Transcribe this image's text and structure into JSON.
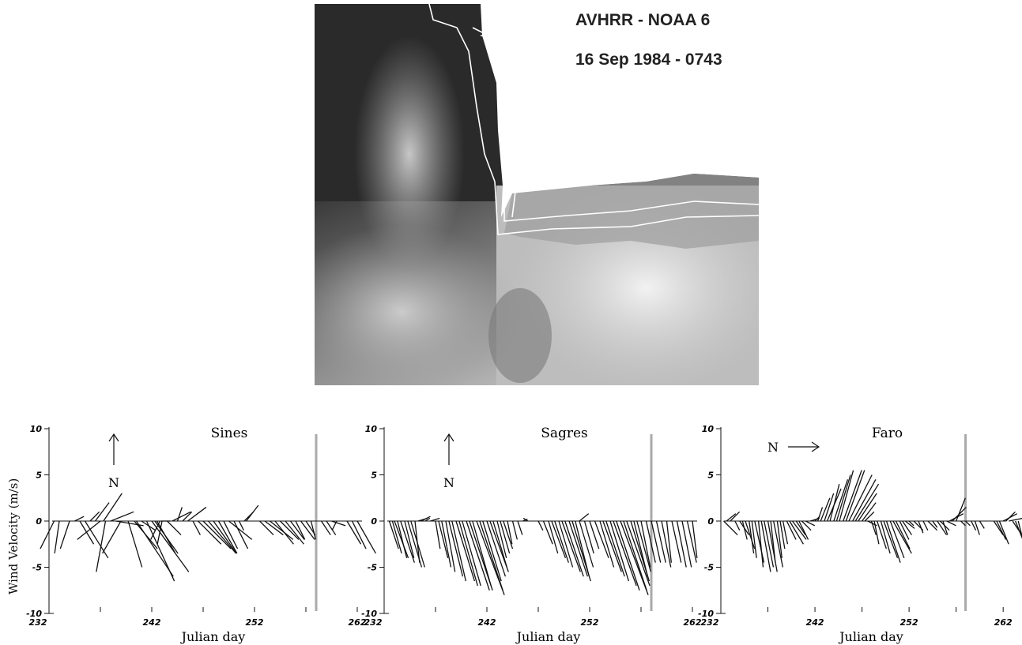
{
  "image": {
    "title": "AVHRR - NOAA 6",
    "date": "16 Sep 1984 - 0743"
  },
  "chart_data": [
    {
      "type": "stickplot",
      "title": "Sines",
      "xlabel": "Julian day",
      "ylabel": "Wind Velocity (m/s)",
      "xlim": [
        232,
        264
      ],
      "ylim": [
        -10,
        10
      ],
      "yticks": [
        10,
        5,
        0,
        -5,
        -10
      ],
      "xticks": [
        232,
        242,
        252,
        262
      ],
      "north_arrow": {
        "label": "N",
        "direction": "up"
      },
      "marker_day": 258,
      "vectors": [
        [
          232.5,
          -1.5,
          -3
        ],
        [
          233,
          -0.5,
          -3.5
        ],
        [
          234,
          -1,
          -3
        ],
        [
          234.5,
          1,
          0.5
        ],
        [
          235,
          1.5,
          -2.5
        ],
        [
          235.5,
          2.5,
          -4
        ],
        [
          236,
          1,
          1
        ],
        [
          236.5,
          1.5,
          2
        ],
        [
          237,
          -2.5,
          -2
        ],
        [
          237.3,
          2,
          3
        ],
        [
          237.5,
          -1,
          -5.5
        ],
        [
          238,
          2.5,
          1
        ],
        [
          238.5,
          3,
          -0.5
        ],
        [
          239,
          -2,
          -3.5
        ],
        [
          239.7,
          1.5,
          -5
        ],
        [
          240.3,
          2.5,
          -3
        ],
        [
          240.5,
          4,
          -6
        ],
        [
          241,
          1.5,
          -1
        ],
        [
          241.5,
          3,
          -6.5
        ],
        [
          242,
          4,
          -5.5
        ],
        [
          242.3,
          2.5,
          -3.5
        ],
        [
          242.5,
          2,
          -3.5
        ],
        [
          242.8,
          -1,
          -2
        ],
        [
          243,
          -0.5,
          -2.5
        ],
        [
          243.5,
          1.5,
          -1.5
        ],
        [
          243.8,
          -1,
          0
        ],
        [
          244,
          2,
          1
        ],
        [
          244.5,
          0.5,
          1.5
        ],
        [
          245,
          1,
          1
        ],
        [
          245.5,
          2,
          1.5
        ],
        [
          246,
          0.8,
          -1.5
        ],
        [
          246.5,
          2.5,
          -2.5
        ],
        [
          247,
          3,
          -3
        ],
        [
          247.5,
          3,
          -3.5
        ],
        [
          248,
          2.5,
          -3.5
        ],
        [
          248.5,
          2,
          -3.5
        ],
        [
          249,
          1.5,
          -3
        ],
        [
          249.5,
          2.5,
          -2
        ],
        [
          250,
          1.5,
          -3
        ],
        [
          250.5,
          0.5,
          -1
        ],
        [
          251,
          1,
          1
        ],
        [
          251.2,
          1.3,
          1.7
        ],
        [
          252.5,
          1.5,
          -1.5
        ],
        [
          253,
          2,
          -1.5
        ],
        [
          253.5,
          2.5,
          -2
        ],
        [
          254,
          2,
          -2.5
        ],
        [
          254.5,
          2,
          -2
        ],
        [
          255,
          2,
          -2.5
        ],
        [
          255.5,
          1.5,
          -2
        ],
        [
          256,
          1,
          -2
        ],
        [
          256.5,
          1.5,
          -2
        ],
        [
          257,
          1,
          -1.5
        ],
        [
          257.5,
          0.5,
          -2
        ],
        [
          258.5,
          1,
          -1.5
        ],
        [
          259,
          1,
          -1.5
        ],
        [
          259.5,
          1.5,
          -0.5
        ],
        [
          260,
          -0.5,
          -1
        ],
        [
          261,
          1.5,
          -2.5
        ],
        [
          261.5,
          1.5,
          -3
        ],
        [
          262,
          2,
          -3.5
        ]
      ]
    },
    {
      "type": "stickplot",
      "title": "Sagres",
      "xlabel": "Julian day",
      "xlim": [
        232,
        264
      ],
      "ylim": [
        -10,
        10
      ],
      "yticks": [
        10,
        5,
        0,
        -5,
        -10
      ],
      "xticks": [
        232,
        242,
        252,
        262
      ],
      "north_arrow": {
        "label": "N",
        "direction": "up"
      },
      "marker_day": 258,
      "vectors": [
        [
          232.5,
          1,
          -3
        ],
        [
          232.8,
          1,
          -3.5
        ],
        [
          233,
          1.5,
          -4
        ],
        [
          233.3,
          1,
          -4
        ],
        [
          233.6,
          1.5,
          -4.5
        ],
        [
          234,
          1,
          -4
        ],
        [
          234.3,
          1.5,
          -5
        ],
        [
          234.6,
          1.5,
          -5
        ],
        [
          235,
          0.5,
          -4.5
        ],
        [
          235.3,
          1,
          0.3
        ],
        [
          235.6,
          1,
          0.5
        ],
        [
          236,
          0.5,
          0.3
        ],
        [
          236.5,
          1,
          0.3
        ],
        [
          237,
          0.5,
          -3
        ],
        [
          237.3,
          1,
          -4
        ],
        [
          237.6,
          1,
          -5
        ],
        [
          238,
          1,
          -5.5
        ],
        [
          238.3,
          1.5,
          -6
        ],
        [
          238.6,
          1.5,
          -6.5
        ],
        [
          239,
          2,
          -6.5
        ],
        [
          239.3,
          2,
          -7
        ],
        [
          239.6,
          2,
          -7
        ],
        [
          240,
          2.5,
          -7.5
        ],
        [
          240.3,
          2.5,
          -7.5
        ],
        [
          240.6,
          2,
          -7
        ],
        [
          241,
          3,
          -8
        ],
        [
          241.3,
          2.5,
          -7.5
        ],
        [
          241.6,
          2,
          -6.5
        ],
        [
          242,
          2,
          -6
        ],
        [
          242.3,
          2,
          -5.5
        ],
        [
          242.6,
          1.5,
          -5
        ],
        [
          243,
          1,
          -4
        ],
        [
          243.3,
          1,
          -3.5
        ],
        [
          243.6,
          1,
          -3
        ],
        [
          244,
          0.5,
          -2.5
        ],
        [
          244.5,
          0.5,
          -2
        ],
        [
          245,
          0.5,
          -1.5
        ],
        [
          245.5,
          0.5,
          0.2
        ],
        [
          246,
          -0.5,
          0.3
        ],
        [
          247,
          0.5,
          -1
        ],
        [
          247.5,
          1,
          -2.5
        ],
        [
          248,
          1,
          -3.5
        ],
        [
          248.3,
          1.5,
          -4
        ],
        [
          248.6,
          1.5,
          -4.5
        ],
        [
          249,
          1.5,
          -5
        ],
        [
          249.3,
          2,
          -5.5
        ],
        [
          249.6,
          2,
          -6
        ],
        [
          250,
          2,
          -6
        ],
        [
          250.3,
          2,
          -6.5
        ],
        [
          250.6,
          1.5,
          -6
        ],
        [
          251,
          1.5,
          -5
        ],
        [
          251.5,
          1,
          -3.5
        ],
        [
          251,
          1,
          0.8
        ],
        [
          252,
          1,
          -3
        ],
        [
          252.5,
          1.5,
          -4
        ],
        [
          253,
          1.5,
          -5
        ],
        [
          253.3,
          2,
          -5.5
        ],
        [
          253.6,
          2,
          -6
        ],
        [
          254,
          2,
          -6.5
        ],
        [
          254.3,
          2.5,
          -7
        ],
        [
          254.6,
          2.5,
          -7.5
        ],
        [
          255,
          3,
          -8
        ],
        [
          255.3,
          2.5,
          -7.5
        ],
        [
          255.6,
          2.5,
          -7
        ],
        [
          256,
          2,
          -6.5
        ],
        [
          256.3,
          1.5,
          -6
        ],
        [
          256.6,
          1.5,
          -5.5
        ],
        [
          257,
          1,
          -5
        ],
        [
          257.5,
          1,
          -4.5
        ],
        [
          258,
          1,
          -4.5
        ],
        [
          258.5,
          1,
          -4.5
        ],
        [
          259,
          1,
          -5
        ],
        [
          259.5,
          0.5,
          -4.5
        ],
        [
          260,
          1,
          -4.5
        ],
        [
          260.5,
          1,
          -5
        ],
        [
          261,
          1,
          -5
        ],
        [
          261.5,
          1,
          -4.5
        ],
        [
          262,
          0.5,
          -4
        ]
      ]
    },
    {
      "type": "stickplot",
      "title": "Faro",
      "xlabel": "Julian day",
      "xlim": [
        232,
        264
      ],
      "ylim": [
        -10,
        10
      ],
      "yticks": [
        10,
        5,
        0,
        -5,
        -10
      ],
      "xticks": [
        232,
        242,
        252,
        262
      ],
      "north_arrow": {
        "label": "N",
        "direction": "right"
      },
      "marker_day": 258,
      "vectors": [
        [
          232.3,
          1.5,
          -1.5
        ],
        [
          232.6,
          1,
          0.8
        ],
        [
          233,
          1,
          1
        ],
        [
          233.5,
          0.5,
          -1
        ],
        [
          234,
          1,
          -1.5
        ],
        [
          234.3,
          0.5,
          -2
        ],
        [
          234.6,
          1,
          -3
        ],
        [
          235,
          0.5,
          -3.5
        ],
        [
          235.3,
          0.5,
          -4
        ],
        [
          235.6,
          1,
          -4.5
        ],
        [
          236,
          0.5,
          -5
        ],
        [
          236.3,
          1,
          -5.5
        ],
        [
          236.6,
          1,
          -5
        ],
        [
          237,
          1,
          -5.5
        ],
        [
          237.3,
          0.5,
          -4.5
        ],
        [
          237.6,
          1,
          -5
        ],
        [
          238,
          0.5,
          -4
        ],
        [
          238.3,
          0.5,
          -3
        ],
        [
          238.6,
          0.5,
          -2.5
        ],
        [
          239,
          1,
          -2
        ],
        [
          239.3,
          1.5,
          -2.5
        ],
        [
          239.6,
          1.5,
          -2
        ],
        [
          240,
          1,
          -1.5
        ],
        [
          240.3,
          1,
          -2
        ],
        [
          240.6,
          1,
          -1
        ],
        [
          241,
          1,
          -0.5
        ],
        [
          241.5,
          1,
          0.3
        ],
        [
          242,
          0.5,
          0.5
        ],
        [
          242.3,
          0.5,
          1.5
        ],
        [
          242.6,
          1,
          2.5
        ],
        [
          243,
          1,
          3
        ],
        [
          243.3,
          1.5,
          3.5
        ],
        [
          243.6,
          1,
          4
        ],
        [
          244,
          1.5,
          4.5
        ],
        [
          244.3,
          1.5,
          5
        ],
        [
          244.6,
          1.5,
          5.5
        ],
        [
          245,
          2,
          5.5
        ],
        [
          245.3,
          2,
          5.5
        ],
        [
          245.6,
          2.5,
          5
        ],
        [
          246,
          2.5,
          4.5
        ],
        [
          246.3,
          2.5,
          4
        ],
        [
          246.6,
          2,
          3
        ],
        [
          247,
          1.5,
          2
        ],
        [
          247.3,
          1,
          1
        ],
        [
          247.6,
          1,
          -0.5
        ],
        [
          248,
          0.5,
          -1.5
        ],
        [
          248.3,
          0.5,
          -2.5
        ],
        [
          248.6,
          1,
          -3
        ],
        [
          249,
          1,
          -3.5
        ],
        [
          249.3,
          1.5,
          -4
        ],
        [
          249.6,
          1.5,
          -4.5
        ],
        [
          250,
          1.5,
          -4
        ],
        [
          250.3,
          2,
          -3.5
        ],
        [
          250.6,
          1.5,
          -3
        ],
        [
          251,
          1,
          -2
        ],
        [
          251.3,
          1,
          -1.5
        ],
        [
          251.6,
          1,
          -0.8
        ],
        [
          252,
          0.5,
          -0.5
        ],
        [
          252.5,
          1,
          -1
        ],
        [
          253,
          0.5,
          -1.3
        ],
        [
          253.5,
          0.5,
          -1
        ],
        [
          254,
          1,
          -1
        ],
        [
          254.5,
          0.5,
          -0.7
        ],
        [
          255,
          1,
          -1.5
        ],
        [
          255.3,
          1,
          -1
        ],
        [
          255.6,
          0.5,
          -1.5
        ],
        [
          256,
          1,
          -0.5
        ],
        [
          256.3,
          1.5,
          0.8
        ],
        [
          256.6,
          1.5,
          1.5
        ],
        [
          257,
          1,
          2.5
        ],
        [
          257.5,
          0.5,
          -0.5
        ],
        [
          258,
          0.5,
          -0.5
        ],
        [
          258.6,
          0.5,
          -1
        ],
        [
          259,
          0.5,
          -1.5
        ],
        [
          259.5,
          0.5,
          -0.8
        ],
        [
          261,
          1,
          -1.5
        ],
        [
          261.3,
          1,
          -2
        ],
        [
          261.6,
          1,
          -2.5
        ],
        [
          262,
          1.5,
          0.8
        ],
        [
          262.3,
          1,
          1
        ],
        [
          262.6,
          1.5,
          0.3
        ],
        [
          263,
          1,
          -1.5
        ],
        [
          263.3,
          1,
          -2.5
        ],
        [
          263.6,
          0.5,
          -2
        ]
      ]
    }
  ]
}
